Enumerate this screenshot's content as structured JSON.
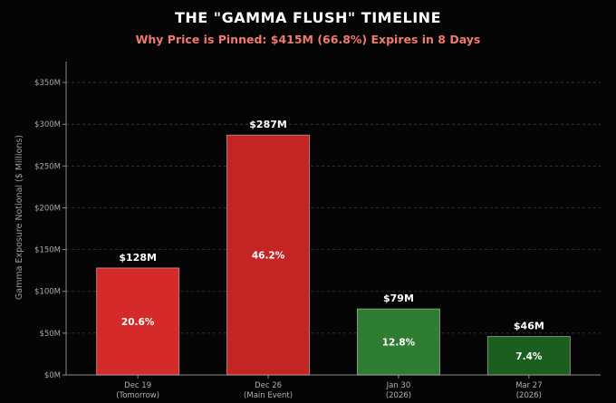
{
  "chart_data": {
    "type": "bar",
    "title": "THE \"GAMMA FLUSH\" TIMELINE",
    "subtitle": "Why Price is Pinned: $415M (66.8%) Expires in 8 Days",
    "ylabel": "Gamma Exposure Notional ($ Millions)",
    "xlabel": "",
    "ylim": [
      0,
      375
    ],
    "yticks": [
      0,
      50,
      100,
      150,
      200,
      250,
      300,
      350
    ],
    "ytick_labels": [
      "$0M",
      "$50M",
      "$100M",
      "$150M",
      "$200M",
      "$250M",
      "$300M",
      "$350M"
    ],
    "grid": true,
    "categories": [
      {
        "line1": "Dec 19",
        "line2": "(Tomorrow)"
      },
      {
        "line1": "Dec 26",
        "line2": "(Main Event)"
      },
      {
        "line1": "Jan 30",
        "line2": "(2026)"
      },
      {
        "line1": "Mar 27",
        "line2": "(2026)"
      }
    ],
    "values": [
      128,
      287,
      79,
      46
    ],
    "value_labels": [
      "$128M",
      "$287M",
      "$79M",
      "$46M"
    ],
    "percent_labels": [
      "20.6%",
      "46.2%",
      "12.8%",
      "7.4%"
    ],
    "colors": [
      "#d42a2a",
      "#c42424",
      "#2e7d32",
      "#1b5e20"
    ]
  }
}
